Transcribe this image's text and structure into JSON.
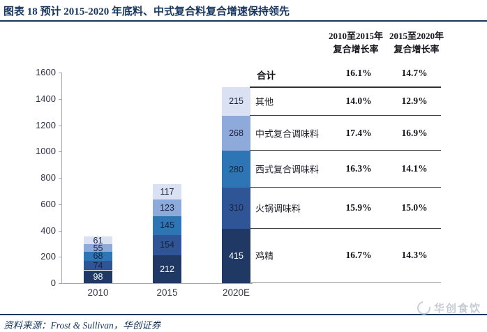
{
  "header": {
    "title": "图表 18 预计 2015-2020 年底料、中式复合料复合增速保持领先"
  },
  "chart_data": {
    "type": "bar",
    "stacked": true,
    "categories": [
      "2010",
      "2015",
      "2020E"
    ],
    "series": [
      {
        "name": "鸡精",
        "values": [
          98,
          212,
          415
        ],
        "color": "#1F3864",
        "label_color": "#FFFFFF"
      },
      {
        "name": "火锅调味料",
        "values": [
          74,
          154,
          310
        ],
        "color": "#2F5597",
        "label_color": "#1b2238"
      },
      {
        "name": "西式复合调味料",
        "values": [
          68,
          145,
          280
        ],
        "color": "#2E75B6",
        "label_color": "#1b2238"
      },
      {
        "name": "中式复合调味料",
        "values": [
          55,
          123,
          268
        ],
        "color": "#8EAADB",
        "label_color": "#1b2238"
      },
      {
        "name": "其他",
        "values": [
          61,
          117,
          215
        ],
        "color": "#D9E1F2",
        "label_color": "#1b2238"
      }
    ],
    "title": "",
    "xlabel": "",
    "ylabel": "",
    "ylim": [
      0,
      1600
    ],
    "ytick_step": 200,
    "grid": false,
    "legend_position": "none (category names listed in adjacent table rows aligned to 2020E segments)"
  },
  "table": {
    "col_headers": [
      [
        "2010至2015年",
        "复合增长率"
      ],
      [
        "2015至2020年",
        "复合增长率"
      ]
    ],
    "total_row": {
      "label": "合计",
      "cagr_2010_2015": "16.1%",
      "cagr_2015_2020": "14.7%"
    },
    "rows": [
      {
        "label": "其他",
        "cagr_2010_2015": "14.0%",
        "cagr_2015_2020": "12.9%"
      },
      {
        "label": "中式复合调味料",
        "cagr_2010_2015": "17.4%",
        "cagr_2015_2020": "16.9%"
      },
      {
        "label": "西式复合调味料",
        "cagr_2010_2015": "16.3%",
        "cagr_2015_2020": "14.1%"
      },
      {
        "label": "火锅调味料",
        "cagr_2010_2015": "15.9%",
        "cagr_2015_2020": "15.0%"
      },
      {
        "label": "鸡精",
        "cagr_2010_2015": "16.7%",
        "cagr_2015_2020": "14.3%"
      }
    ]
  },
  "footer": {
    "source": "资料来源：Frost & Sullivan，华创证券",
    "watermark": "华创食饮"
  },
  "colors": {
    "brand_navy": "#17365D",
    "axis_gray": "#A6A6A6",
    "watermark_gray": "#C6CBD4"
  }
}
